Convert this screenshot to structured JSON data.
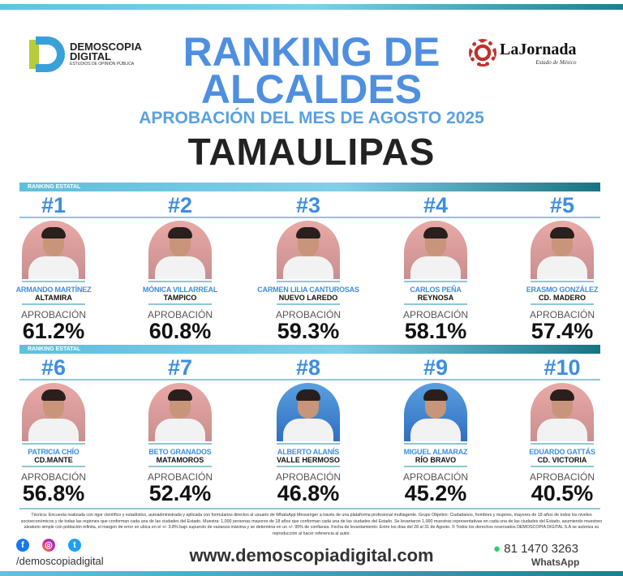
{
  "header": {
    "logo_left": {
      "line1": "DEMOSCOPIA",
      "line2": "DIGITAL",
      "line3": "ESTUDIOS DE OPINIÓN PÚBLICA"
    },
    "logo_right": {
      "name": "LaJornada",
      "sub": "Estado de México"
    },
    "title_line1": "RANKING DE",
    "title_line2": "ALCALDES",
    "subtitle": "APROBACIÓN DEL MES DE AGOSTO 2025",
    "state": "TAMAULIPAS"
  },
  "band_label": "RANKING ESTATAL",
  "approval_label": "APROBACIÓN",
  "ranking": [
    {
      "rank": "#1",
      "name": "ARMANDO MARTÍNEZ",
      "city": "ALTAMIRA",
      "approval": "61.2%"
    },
    {
      "rank": "#2",
      "name": "MÓNICA VILLARREAL",
      "city": "TAMPICO",
      "approval": "60.8%"
    },
    {
      "rank": "#3",
      "name": "CARMEN LILIA CANTUROSAS",
      "city": "NUEVO LAREDO",
      "approval": "59.3%"
    },
    {
      "rank": "#4",
      "name": "CARLOS PEÑA",
      "city": "REYNOSA",
      "approval": "58.1%"
    },
    {
      "rank": "#5",
      "name": "ERASMO GONZÁLEZ",
      "city": "CD. MADERO",
      "approval": "57.4%"
    },
    {
      "rank": "#6",
      "name": "PATRICIA CHÍO",
      "city": "CD.MANTE",
      "approval": "56.8%"
    },
    {
      "rank": "#7",
      "name": "BETO GRANADOS",
      "city": "MATAMOROS",
      "approval": "52.4%"
    },
    {
      "rank": "#8",
      "name": "ALBERTO ALANÍS",
      "city": "VALLE HERMOSO",
      "approval": "46.8%"
    },
    {
      "rank": "#9",
      "name": "MIGUEL ALMARAZ",
      "city": "RÍO BRAVO",
      "approval": "45.2%"
    },
    {
      "rank": "#10",
      "name": "EDUARDO GATTÁS",
      "city": "CD. VICTORIA",
      "approval": "40.5%"
    }
  ],
  "footer": {
    "note": "Técnica: Encuesta realizada con rigor científico y estadístico, autoadministrada y aplicada con formularios directos al usuario de WhatsApp Messenger a través de una plataforma profesional multiagente. Grupo Objetivo: Ciudadanos, hombres y mujeres, mayores de 18 años de todos los niveles socioeconómicos y de todas las regiones que conforman cada una de las ciudades del Estado. Muestra: 1,000 personas mayores de 18 años que conforman cada una de las ciudades del Estado. Se levantaron 1,000 muestras representativas en cada una de las ciudades del Estado, asumiendo muestreo aleatorio simple con población infinita, el margen de error se ubica en el +/- 3.8% bajo supuesto de varianza máxima y se determina en un +/- 95% de confianza. Fecha de levantamiento: Entre los días del 28 al 31 de Agosto. © Todos los derechos reservados DEMOSCOPIA DIGITAL S.A se autoriza su reproducción al hacer referencia al autor.",
    "handle": "/demoscopiadigital",
    "url": "www.demoscopiadigital.com",
    "phone": "81 1470 3263",
    "whatsapp": "WhatsApp"
  }
}
